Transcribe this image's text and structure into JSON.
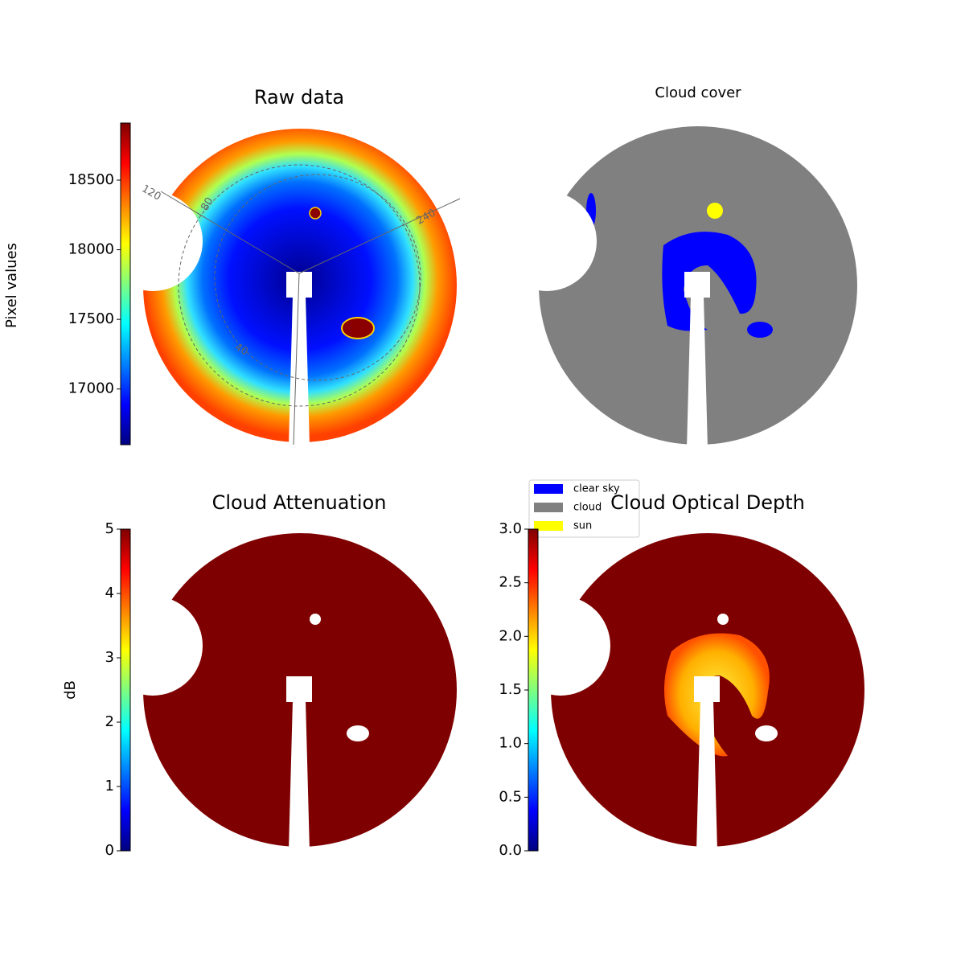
{
  "chart_data": [
    {
      "type": "image",
      "title": "Raw data",
      "colorbar_label": "Pixel values",
      "ylim": [
        16600,
        18910
      ],
      "yticks": [
        17000,
        17500,
        18000,
        18500
      ],
      "annotations": [
        "120",
        "80",
        "240",
        "40"
      ]
    },
    {
      "type": "image",
      "title": "Cloud cover",
      "legend": [
        {
          "name": "clear sky",
          "color": "#0000ff"
        },
        {
          "name": "cloud",
          "color": "#808080"
        },
        {
          "name": "sun",
          "color": "#ffff00"
        }
      ]
    },
    {
      "type": "image",
      "title": "Cloud Attenuation",
      "colorbar_label": "dB",
      "ylim": [
        0,
        5
      ],
      "yticks": [
        0,
        1,
        2,
        3,
        4,
        5
      ]
    },
    {
      "type": "image",
      "title": "Cloud Optical Depth",
      "ylim": [
        0,
        3
      ],
      "yticks": [
        {
          "value": 0,
          "label": "0.0"
        },
        0.5,
        {
          "value": 1,
          "label": "1.0"
        },
        1.5,
        {
          "value": 2,
          "label": "2.0"
        },
        2.5,
        {
          "value": 3,
          "label": "3.0"
        }
      ]
    }
  ]
}
